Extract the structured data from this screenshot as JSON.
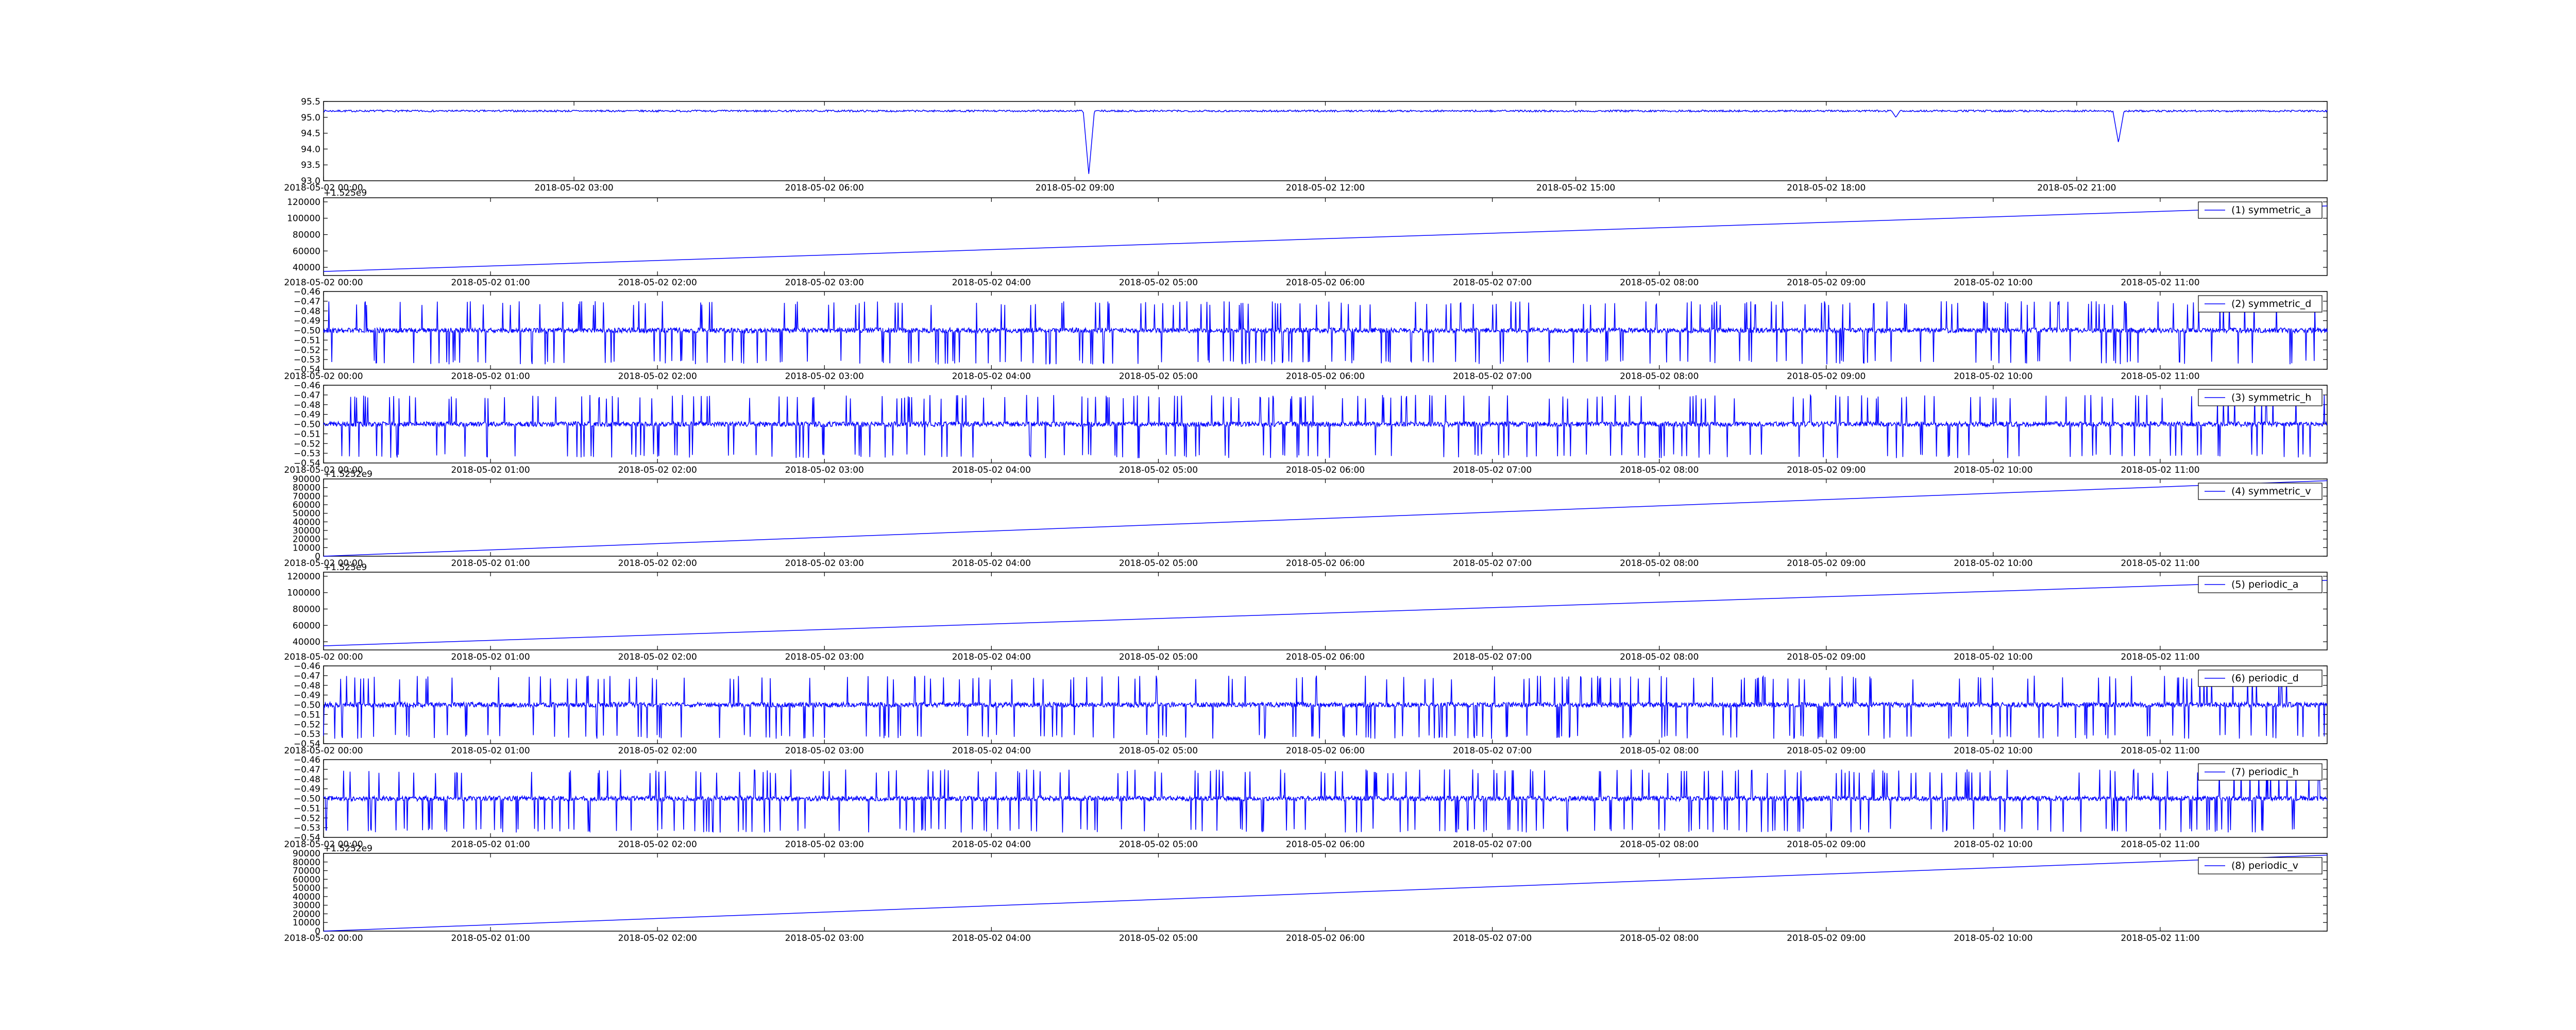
{
  "chart_data": [
    {
      "type": "line",
      "x_ticks": [
        "2018-05-02 00:00",
        "2018-05-02 03:00",
        "2018-05-02 06:00",
        "2018-05-02 09:00",
        "2018-05-02 12:00",
        "2018-05-02 15:00",
        "2018-05-02 18:00",
        "2018-05-02 21:00"
      ],
      "xlim": [
        "2018-05-02 00:00",
        "2018-05-03 00:00"
      ],
      "y_ticks": [
        "93.0",
        "93.5",
        "94.0",
        "94.5",
        "95.0",
        "95.5"
      ],
      "ylim": [
        93.0,
        95.5
      ],
      "series": [
        {
          "baseline": 95.2,
          "noise": 0.03,
          "dips": [
            {
              "x": "2018-05-02 09:10",
              "value": 93.2,
              "width_min": 4
            },
            {
              "x": "2018-05-02 18:50",
              "value": 95.0,
              "width_min": 3
            },
            {
              "x": "2018-05-02 21:30",
              "value": 94.2,
              "width_min": 4
            }
          ]
        }
      ],
      "legend": ""
    },
    {
      "type": "line",
      "x_ticks": [
        "2018-05-02 00:00",
        "2018-05-02 01:00",
        "2018-05-02 02:00",
        "2018-05-02 03:00",
        "2018-05-02 04:00",
        "2018-05-02 05:00",
        "2018-05-02 06:00",
        "2018-05-02 07:00",
        "2018-05-02 08:00",
        "2018-05-02 09:00",
        "2018-05-02 10:00",
        "2018-05-02 11:00"
      ],
      "xlim": [
        "2018-05-02 00:00",
        "2018-05-02 12:00"
      ],
      "y_ticks": [
        "40000",
        "60000",
        "80000",
        "100000",
        "120000"
      ],
      "ylim": [
        30000,
        125000
      ],
      "offset_label": "+1.525e9",
      "series": [
        {
          "name": "(1) symmetric_a",
          "start": 35000,
          "end": 115000
        }
      ],
      "legend": "top-right"
    },
    {
      "type": "line",
      "x_ticks": [
        "2018-05-02 00:00",
        "2018-05-02 01:00",
        "2018-05-02 02:00",
        "2018-05-02 03:00",
        "2018-05-02 04:00",
        "2018-05-02 05:00",
        "2018-05-02 06:00",
        "2018-05-02 07:00",
        "2018-05-02 08:00",
        "2018-05-02 09:00",
        "2018-05-02 10:00",
        "2018-05-02 11:00"
      ],
      "xlim": [
        "2018-05-02 00:00",
        "2018-05-02 12:00"
      ],
      "y_ticks": [
        "−0.54",
        "−0.53",
        "−0.52",
        "−0.51",
        "−0.50",
        "−0.49",
        "−0.48",
        "−0.47",
        "−0.46"
      ],
      "ylim": [
        -0.54,
        -0.46
      ],
      "series": [
        {
          "name": "(2) symmetric_d",
          "baseline": -0.5,
          "spike_hi": -0.47,
          "spike_lo": -0.535
        }
      ],
      "legend": "top-right"
    },
    {
      "type": "line",
      "x_ticks": [
        "2018-05-02 00:00",
        "2018-05-02 01:00",
        "2018-05-02 02:00",
        "2018-05-02 03:00",
        "2018-05-02 04:00",
        "2018-05-02 05:00",
        "2018-05-02 06:00",
        "2018-05-02 07:00",
        "2018-05-02 08:00",
        "2018-05-02 09:00",
        "2018-05-02 10:00",
        "2018-05-02 11:00"
      ],
      "xlim": [
        "2018-05-02 00:00",
        "2018-05-02 12:00"
      ],
      "y_ticks": [
        "−0.54",
        "−0.53",
        "−0.52",
        "−0.51",
        "−0.50",
        "−0.49",
        "−0.48",
        "−0.47",
        "−0.46"
      ],
      "ylim": [
        -0.54,
        -0.46
      ],
      "series": [
        {
          "name": "(3) symmetric_h",
          "baseline": -0.5,
          "spike_hi": -0.47,
          "spike_lo": -0.535
        }
      ],
      "legend": "top-right"
    },
    {
      "type": "line",
      "x_ticks": [
        "2018-05-02 00:00",
        "2018-05-02 01:00",
        "2018-05-02 02:00",
        "2018-05-02 03:00",
        "2018-05-02 04:00",
        "2018-05-02 05:00",
        "2018-05-02 06:00",
        "2018-05-02 07:00",
        "2018-05-02 08:00",
        "2018-05-02 09:00",
        "2018-05-02 10:00",
        "2018-05-02 11:00"
      ],
      "xlim": [
        "2018-05-02 00:00",
        "2018-05-02 12:00"
      ],
      "y_ticks": [
        "0",
        "10000",
        "20000",
        "30000",
        "40000",
        "50000",
        "60000",
        "70000",
        "80000",
        "90000"
      ],
      "ylim": [
        0,
        90000
      ],
      "offset_label": "+1.5252e9",
      "series": [
        {
          "name": "(4) symmetric_v",
          "start": 0,
          "end": 88000
        }
      ],
      "legend": "top-right"
    },
    {
      "type": "line",
      "x_ticks": [
        "2018-05-02 00:00",
        "2018-05-02 01:00",
        "2018-05-02 02:00",
        "2018-05-02 03:00",
        "2018-05-02 04:00",
        "2018-05-02 05:00",
        "2018-05-02 06:00",
        "2018-05-02 07:00",
        "2018-05-02 08:00",
        "2018-05-02 09:00",
        "2018-05-02 10:00",
        "2018-05-02 11:00"
      ],
      "xlim": [
        "2018-05-02 00:00",
        "2018-05-02 12:00"
      ],
      "y_ticks": [
        "40000",
        "60000",
        "80000",
        "100000",
        "120000"
      ],
      "ylim": [
        30000,
        125000
      ],
      "offset_label": "+1.525e9",
      "series": [
        {
          "name": "(5) periodic_a",
          "start": 35000,
          "end": 115000
        }
      ],
      "legend": "top-right"
    },
    {
      "type": "line",
      "x_ticks": [
        "2018-05-02 00:00",
        "2018-05-02 01:00",
        "2018-05-02 02:00",
        "2018-05-02 03:00",
        "2018-05-02 04:00",
        "2018-05-02 05:00",
        "2018-05-02 06:00",
        "2018-05-02 07:00",
        "2018-05-02 08:00",
        "2018-05-02 09:00",
        "2018-05-02 10:00",
        "2018-05-02 11:00"
      ],
      "xlim": [
        "2018-05-02 00:00",
        "2018-05-02 12:00"
      ],
      "y_ticks": [
        "−0.54",
        "−0.53",
        "−0.52",
        "−0.51",
        "−0.50",
        "−0.49",
        "−0.48",
        "−0.47",
        "−0.46"
      ],
      "ylim": [
        -0.54,
        -0.46
      ],
      "series": [
        {
          "name": "(6) periodic_d",
          "baseline": -0.5,
          "spike_hi": -0.47,
          "spike_lo": -0.535
        }
      ],
      "legend": "top-right"
    },
    {
      "type": "line",
      "x_ticks": [
        "2018-05-02 00:00",
        "2018-05-02 01:00",
        "2018-05-02 02:00",
        "2018-05-02 03:00",
        "2018-05-02 04:00",
        "2018-05-02 05:00",
        "2018-05-02 06:00",
        "2018-05-02 07:00",
        "2018-05-02 08:00",
        "2018-05-02 09:00",
        "2018-05-02 10:00",
        "2018-05-02 11:00"
      ],
      "xlim": [
        "2018-05-02 00:00",
        "2018-05-02 12:00"
      ],
      "y_ticks": [
        "−0.54",
        "−0.53",
        "−0.52",
        "−0.51",
        "−0.50",
        "−0.49",
        "−0.48",
        "−0.47",
        "−0.46"
      ],
      "ylim": [
        -0.54,
        -0.46
      ],
      "series": [
        {
          "name": "(7) periodic_h",
          "baseline": -0.5,
          "spike_hi": -0.47,
          "spike_lo": -0.535
        }
      ],
      "legend": "top-right"
    },
    {
      "type": "line",
      "x_ticks": [
        "2018-05-02 00:00",
        "2018-05-02 01:00",
        "2018-05-02 02:00",
        "2018-05-02 03:00",
        "2018-05-02 04:00",
        "2018-05-02 05:00",
        "2018-05-02 06:00",
        "2018-05-02 07:00",
        "2018-05-02 08:00",
        "2018-05-02 09:00",
        "2018-05-02 10:00",
        "2018-05-02 11:00"
      ],
      "xlim": [
        "2018-05-02 00:00",
        "2018-05-02 12:00"
      ],
      "y_ticks": [
        "0",
        "10000",
        "20000",
        "30000",
        "40000",
        "50000",
        "60000",
        "70000",
        "80000",
        "90000"
      ],
      "ylim": [
        0,
        90000
      ],
      "offset_label": "+1.5252e9",
      "series": [
        {
          "name": "(8) periodic_v",
          "start": 0,
          "end": 88000
        }
      ],
      "legend": "top-right"
    }
  ],
  "colors": {
    "line": "#0000ff",
    "axes": "#000000",
    "background": "#ffffff"
  }
}
